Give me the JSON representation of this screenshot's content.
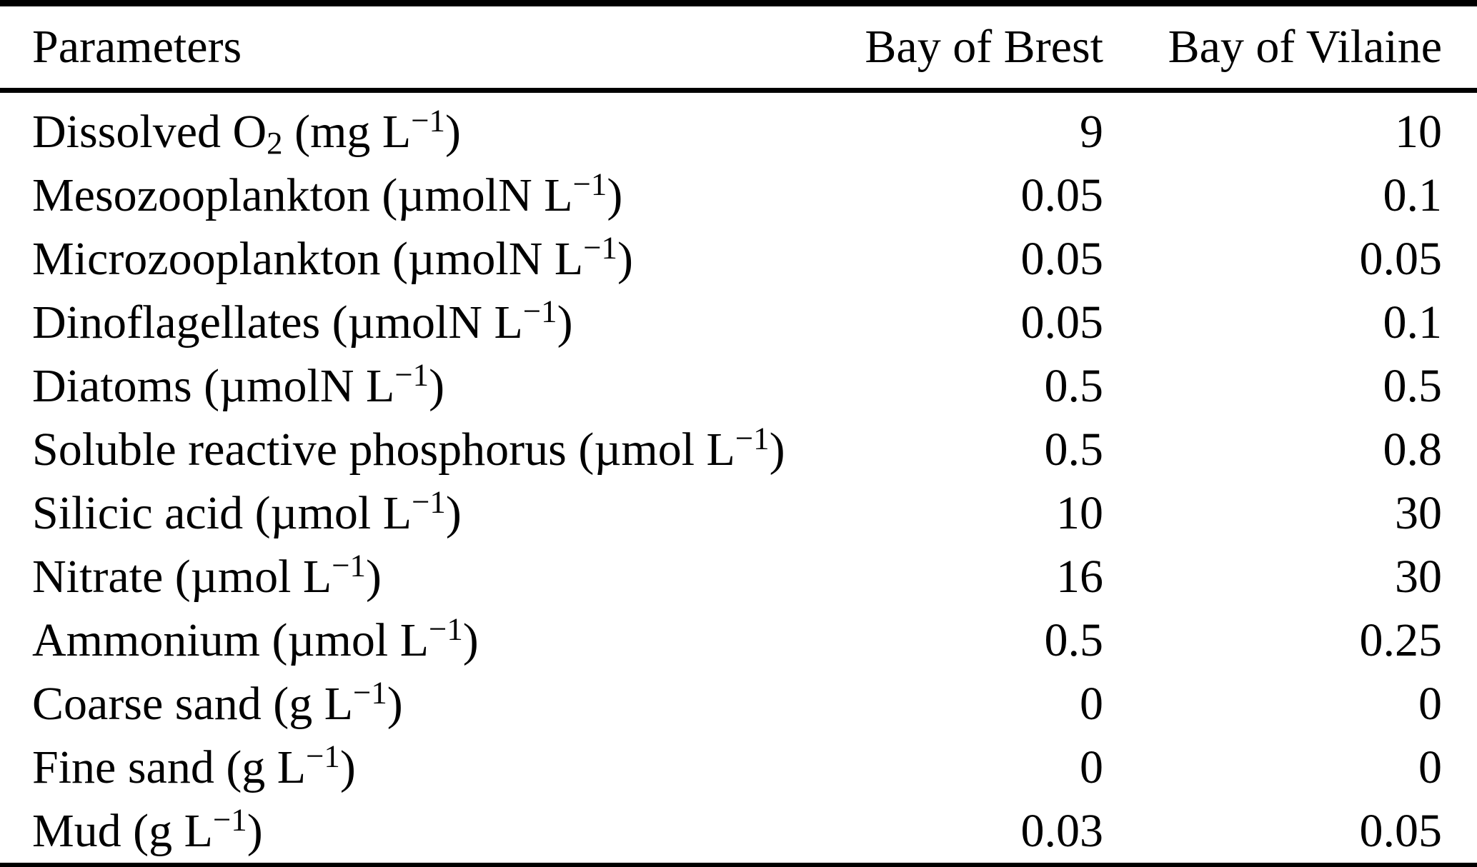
{
  "table": {
    "columns": [
      "Parameters",
      "Bay of Brest",
      "Bay of Vilaine"
    ],
    "rows": [
      {
        "parameter": "Dissolved O_{2} (mg L^{−1})",
        "bay_of_brest": "9",
        "bay_of_vilaine": "10"
      },
      {
        "parameter": "Mesozooplankton (µmolN L^{−1})",
        "bay_of_brest": "0.05",
        "bay_of_vilaine": "0.1"
      },
      {
        "parameter": "Microzooplankton (µmolN L^{−1})",
        "bay_of_brest": "0.05",
        "bay_of_vilaine": "0.05"
      },
      {
        "parameter": "Dinoflagellates (µmolN L^{−1})",
        "bay_of_brest": "0.05",
        "bay_of_vilaine": "0.1"
      },
      {
        "parameter": "Diatoms (µmolN L^{−1})",
        "bay_of_brest": "0.5",
        "bay_of_vilaine": "0.5"
      },
      {
        "parameter": "Soluble reactive phosphorus (µmol L^{−1})",
        "bay_of_brest": "0.5",
        "bay_of_vilaine": "0.8"
      },
      {
        "parameter": "Silicic acid (µmol L^{−1})",
        "bay_of_brest": "10",
        "bay_of_vilaine": "30"
      },
      {
        "parameter": "Nitrate (µmol L^{−1})",
        "bay_of_brest": "16",
        "bay_of_vilaine": "30"
      },
      {
        "parameter": "Ammonium (µmol L^{−1})",
        "bay_of_brest": "0.5",
        "bay_of_vilaine": "0.25"
      },
      {
        "parameter": "Coarse sand (g L^{−1})",
        "bay_of_brest": "0",
        "bay_of_vilaine": "0"
      },
      {
        "parameter": "Fine sand (g L^{−1})",
        "bay_of_brest": "0",
        "bay_of_vilaine": "0"
      },
      {
        "parameter": "Mud (g L^{−1})",
        "bay_of_brest": "0.03",
        "bay_of_vilaine": "0.05"
      }
    ],
    "text_color": "#000000",
    "rule_color": "#000000",
    "background_color": "#ffffff"
  }
}
